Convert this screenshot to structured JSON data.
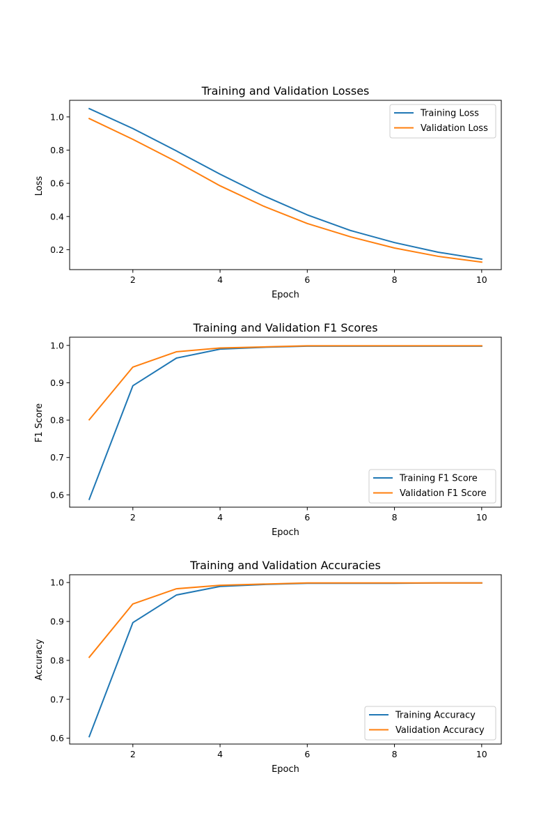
{
  "chart_data": [
    {
      "type": "line",
      "title": "Training and Validation Losses",
      "xlabel": "Epoch",
      "ylabel": "Loss",
      "x": [
        1,
        2,
        3,
        4,
        5,
        6,
        7,
        8,
        9,
        10
      ],
      "xlim": [
        0.55,
        10.45
      ],
      "ylim": [
        0.08,
        1.1
      ],
      "xticks": [
        2,
        4,
        6,
        8,
        10
      ],
      "yticks": [
        0.2,
        0.4,
        0.6,
        0.8,
        1.0
      ],
      "ytick_labels": [
        "0.2",
        "0.4",
        "0.6",
        "0.8",
        "1.0"
      ],
      "legend": "upper right",
      "grid": false,
      "series": [
        {
          "name": "Training Loss",
          "color": "#1f77b4",
          "values": [
            1.05,
            0.93,
            0.795,
            0.655,
            0.525,
            0.41,
            0.315,
            0.243,
            0.185,
            0.143
          ]
        },
        {
          "name": "Validation Loss",
          "color": "#ff7f0e",
          "values": [
            0.99,
            0.865,
            0.73,
            0.585,
            0.462,
            0.358,
            0.277,
            0.21,
            0.16,
            0.125
          ]
        }
      ]
    },
    {
      "type": "line",
      "title": "Training and Validation F1 Scores",
      "xlabel": "Epoch",
      "ylabel": "F1 Score",
      "x": [
        1,
        2,
        3,
        4,
        5,
        6,
        7,
        8,
        9,
        10
      ],
      "xlim": [
        0.55,
        10.45
      ],
      "ylim": [
        0.567,
        1.022
      ],
      "xticks": [
        2,
        4,
        6,
        8,
        10
      ],
      "yticks": [
        0.6,
        0.7,
        0.8,
        0.9,
        1.0
      ],
      "ytick_labels": [
        "0.6",
        "0.7",
        "0.8",
        "0.9",
        "1.0"
      ],
      "legend": "lower right",
      "grid": false,
      "series": [
        {
          "name": "Training F1 Score",
          "color": "#1f77b4",
          "values": [
            0.588,
            0.892,
            0.966,
            0.99,
            0.995,
            0.998,
            0.998,
            0.998,
            0.998,
            0.998
          ]
        },
        {
          "name": "Validation F1 Score",
          "color": "#ff7f0e",
          "values": [
            0.801,
            0.942,
            0.983,
            0.993,
            0.996,
            0.999,
            0.999,
            0.999,
            0.999,
            0.999
          ]
        }
      ]
    },
    {
      "type": "line",
      "title": "Training and Validation Accuracies",
      "xlabel": "Epoch",
      "ylabel": "Accuracy",
      "x": [
        1,
        2,
        3,
        4,
        5,
        6,
        7,
        8,
        9,
        10
      ],
      "xlim": [
        0.55,
        10.45
      ],
      "ylim": [
        0.585,
        1.02
      ],
      "xticks": [
        2,
        4,
        6,
        8,
        10
      ],
      "yticks": [
        0.6,
        0.7,
        0.8,
        0.9,
        1.0
      ],
      "ytick_labels": [
        "0.6",
        "0.7",
        "0.8",
        "0.9",
        "1.0"
      ],
      "legend": "lower right",
      "grid": false,
      "series": [
        {
          "name": "Training Accuracy",
          "color": "#1f77b4",
          "values": [
            0.604,
            0.897,
            0.968,
            0.99,
            0.995,
            0.998,
            0.998,
            0.998,
            0.999,
            0.999
          ]
        },
        {
          "name": "Validation Accuracy",
          "color": "#ff7f0e",
          "values": [
            0.808,
            0.945,
            0.984,
            0.993,
            0.996,
            0.999,
            0.999,
            0.999,
            0.999,
            0.999
          ]
        }
      ]
    }
  ]
}
